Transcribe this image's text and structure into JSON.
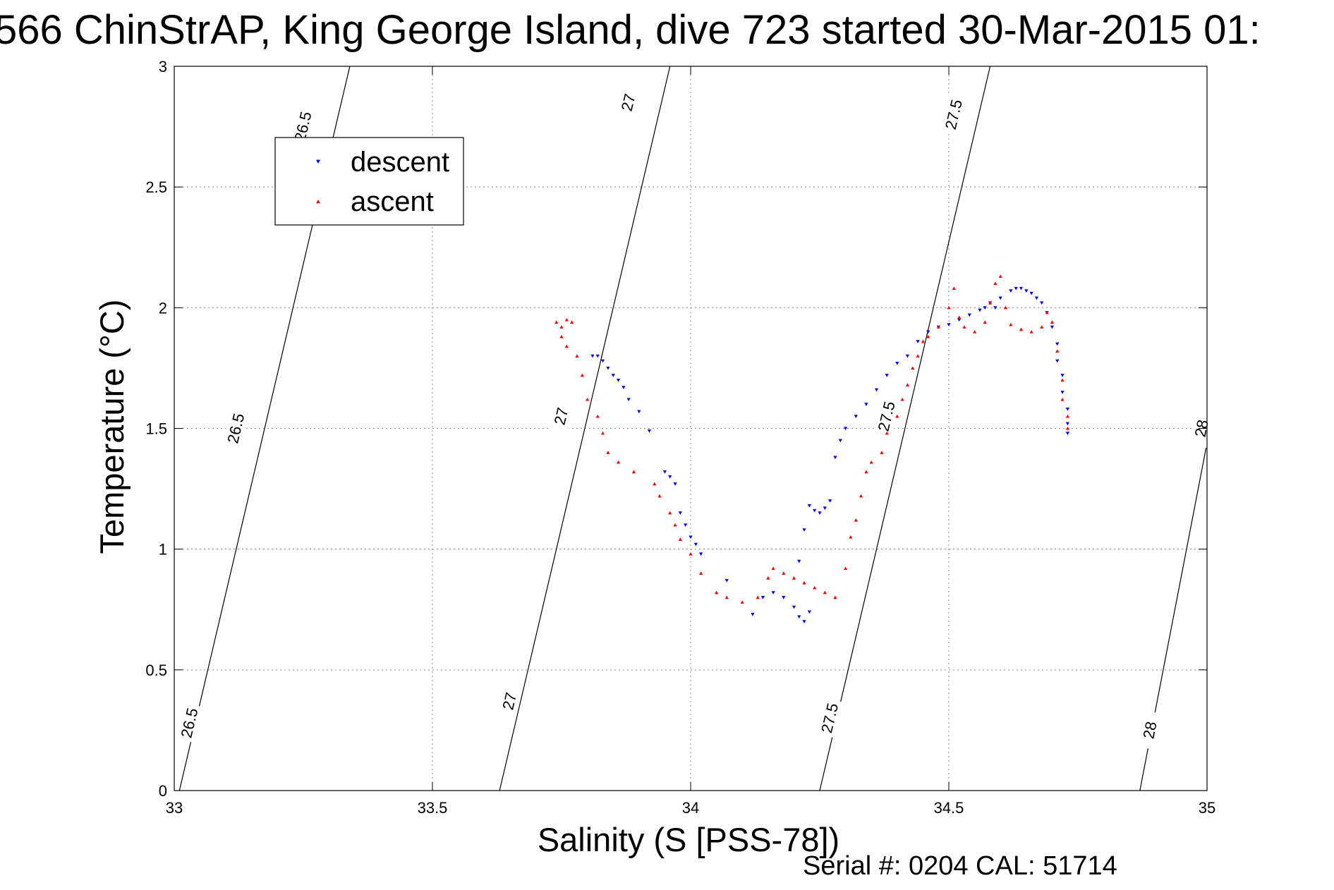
{
  "chart_data": {
    "type": "scatter",
    "title": "566 ChinStrAP, King George Island, dive 723 started 30-Mar-2015 01:",
    "xlabel": "Salinity (S [PSS-78])",
    "ylabel": "Temperature (°C)",
    "xlim": [
      33,
      35
    ],
    "ylim": [
      0,
      3
    ],
    "xticks": [
      33,
      33.5,
      34,
      34.5,
      35
    ],
    "xtick_labels": [
      "33",
      "33.5",
      "34",
      "34.5",
      "35"
    ],
    "yticks": [
      0,
      0.5,
      1,
      1.5,
      2,
      2.5,
      3
    ],
    "ytick_labels": [
      "0",
      "0.5",
      "1",
      "1.5",
      "2",
      "2.5",
      "3"
    ],
    "grid": true,
    "legend_position": "top-left",
    "colors": {
      "descent": "#0000ff",
      "ascent": "#ff0000",
      "contour": "#000000"
    },
    "series": [
      {
        "name": "descent",
        "marker": "triangle-down",
        "color": "#0000ff",
        "points": [
          [
            33.81,
            1.8
          ],
          [
            33.82,
            1.8
          ],
          [
            33.83,
            1.78
          ],
          [
            33.84,
            1.75
          ],
          [
            33.85,
            1.72
          ],
          [
            33.86,
            1.7
          ],
          [
            33.87,
            1.67
          ],
          [
            33.88,
            1.62
          ],
          [
            33.9,
            1.57
          ],
          [
            33.92,
            1.49
          ],
          [
            33.95,
            1.32
          ],
          [
            33.96,
            1.3
          ],
          [
            33.97,
            1.27
          ],
          [
            33.98,
            1.15
          ],
          [
            33.99,
            1.1
          ],
          [
            34.0,
            1.05
          ],
          [
            34.01,
            1.02
          ],
          [
            34.02,
            0.98
          ],
          [
            34.07,
            0.87
          ],
          [
            34.12,
            0.73
          ],
          [
            34.14,
            0.8
          ],
          [
            34.16,
            0.82
          ],
          [
            34.18,
            0.8
          ],
          [
            34.2,
            0.76
          ],
          [
            34.21,
            0.72
          ],
          [
            34.22,
            0.7
          ],
          [
            34.23,
            0.74
          ],
          [
            34.21,
            0.95
          ],
          [
            34.22,
            1.08
          ],
          [
            34.23,
            1.18
          ],
          [
            34.24,
            1.16
          ],
          [
            34.25,
            1.15
          ],
          [
            34.26,
            1.17
          ],
          [
            34.27,
            1.2
          ],
          [
            34.28,
            1.38
          ],
          [
            34.29,
            1.45
          ],
          [
            34.3,
            1.5
          ],
          [
            34.32,
            1.55
          ],
          [
            34.34,
            1.6
          ],
          [
            34.36,
            1.66
          ],
          [
            34.38,
            1.72
          ],
          [
            34.4,
            1.77
          ],
          [
            34.42,
            1.8
          ],
          [
            34.44,
            1.86
          ],
          [
            34.46,
            1.9
          ],
          [
            34.48,
            1.92
          ],
          [
            34.5,
            1.93
          ],
          [
            34.52,
            1.95
          ],
          [
            34.54,
            1.97
          ],
          [
            34.56,
            1.99
          ],
          [
            34.57,
            2.0
          ],
          [
            34.58,
            2.02
          ],
          [
            34.59,
            2.0
          ],
          [
            34.6,
            2.04
          ],
          [
            34.62,
            2.07
          ],
          [
            34.63,
            2.08
          ],
          [
            34.64,
            2.08
          ],
          [
            34.65,
            2.07
          ],
          [
            34.66,
            2.06
          ],
          [
            34.67,
            2.04
          ],
          [
            34.68,
            2.02
          ],
          [
            34.69,
            1.98
          ],
          [
            34.7,
            1.92
          ],
          [
            34.71,
            1.85
          ],
          [
            34.71,
            1.78
          ],
          [
            34.72,
            1.72
          ],
          [
            34.72,
            1.65
          ],
          [
            34.73,
            1.58
          ],
          [
            34.73,
            1.52
          ],
          [
            34.73,
            1.48
          ]
        ]
      },
      {
        "name": "ascent",
        "marker": "triangle-up",
        "color": "#ff0000",
        "points": [
          [
            33.74,
            1.94
          ],
          [
            33.75,
            1.92
          ],
          [
            33.76,
            1.95
          ],
          [
            33.77,
            1.94
          ],
          [
            33.75,
            1.88
          ],
          [
            33.76,
            1.84
          ],
          [
            33.78,
            1.8
          ],
          [
            33.79,
            1.72
          ],
          [
            33.8,
            1.62
          ],
          [
            33.82,
            1.55
          ],
          [
            33.83,
            1.48
          ],
          [
            33.84,
            1.4
          ],
          [
            33.86,
            1.36
          ],
          [
            33.89,
            1.32
          ],
          [
            33.93,
            1.27
          ],
          [
            33.94,
            1.22
          ],
          [
            33.96,
            1.15
          ],
          [
            33.97,
            1.1
          ],
          [
            33.98,
            1.04
          ],
          [
            34.0,
            0.98
          ],
          [
            34.02,
            0.9
          ],
          [
            34.05,
            0.82
          ],
          [
            34.07,
            0.8
          ],
          [
            34.1,
            0.78
          ],
          [
            34.13,
            0.8
          ],
          [
            34.15,
            0.88
          ],
          [
            34.16,
            0.92
          ],
          [
            34.18,
            0.9
          ],
          [
            34.2,
            0.88
          ],
          [
            34.22,
            0.86
          ],
          [
            34.24,
            0.84
          ],
          [
            34.26,
            0.82
          ],
          [
            34.28,
            0.8
          ],
          [
            34.3,
            0.92
          ],
          [
            34.31,
            1.05
          ],
          [
            34.32,
            1.12
          ],
          [
            34.33,
            1.22
          ],
          [
            34.34,
            1.32
          ],
          [
            34.35,
            1.36
          ],
          [
            34.37,
            1.4
          ],
          [
            34.38,
            1.48
          ],
          [
            34.4,
            1.55
          ],
          [
            34.41,
            1.62
          ],
          [
            34.42,
            1.68
          ],
          [
            34.43,
            1.75
          ],
          [
            34.44,
            1.8
          ],
          [
            34.45,
            1.86
          ],
          [
            34.46,
            1.88
          ],
          [
            34.48,
            1.92
          ],
          [
            34.5,
            2.0
          ],
          [
            34.51,
            2.08
          ],
          [
            34.52,
            1.96
          ],
          [
            34.53,
            1.92
          ],
          [
            34.55,
            1.9
          ],
          [
            34.57,
            1.94
          ],
          [
            34.58,
            2.02
          ],
          [
            34.59,
            2.1
          ],
          [
            34.6,
            2.13
          ],
          [
            34.61,
            2.0
          ],
          [
            34.62,
            1.93
          ],
          [
            34.64,
            1.91
          ],
          [
            34.66,
            1.9
          ],
          [
            34.68,
            1.92
          ],
          [
            34.69,
            1.98
          ],
          [
            34.7,
            1.94
          ],
          [
            34.71,
            1.82
          ],
          [
            34.72,
            1.7
          ],
          [
            34.72,
            1.62
          ],
          [
            34.73,
            1.55
          ],
          [
            34.73,
            1.5
          ]
        ]
      }
    ],
    "contours": [
      {
        "label": "26.5",
        "line": [
          [
            33.01,
            0
          ],
          [
            33.34,
            3
          ]
        ],
        "label_points": [
          [
            33.03,
            0.28
          ],
          [
            33.12,
            1.5
          ],
          [
            33.25,
            2.75
          ]
        ]
      },
      {
        "label": "27",
        "line": [
          [
            33.63,
            0
          ],
          [
            33.96,
            3
          ]
        ],
        "label_points": [
          [
            33.65,
            0.37
          ],
          [
            33.75,
            1.55
          ],
          [
            33.88,
            2.85
          ]
        ]
      },
      {
        "label": "27.5",
        "line": [
          [
            34.25,
            0
          ],
          [
            34.58,
            3
          ]
        ],
        "label_points": [
          [
            34.27,
            0.3
          ],
          [
            34.38,
            1.55
          ],
          [
            34.51,
            2.8
          ]
        ]
      },
      {
        "label": "28",
        "line": [
          [
            34.87,
            0
          ],
          [
            35.01,
            1.55
          ]
        ],
        "label_points": [
          [
            34.89,
            0.25
          ],
          [
            34.99,
            1.5
          ]
        ]
      }
    ]
  },
  "footer": {
    "serial": "Serial #: 0204  CAL: 51714"
  }
}
